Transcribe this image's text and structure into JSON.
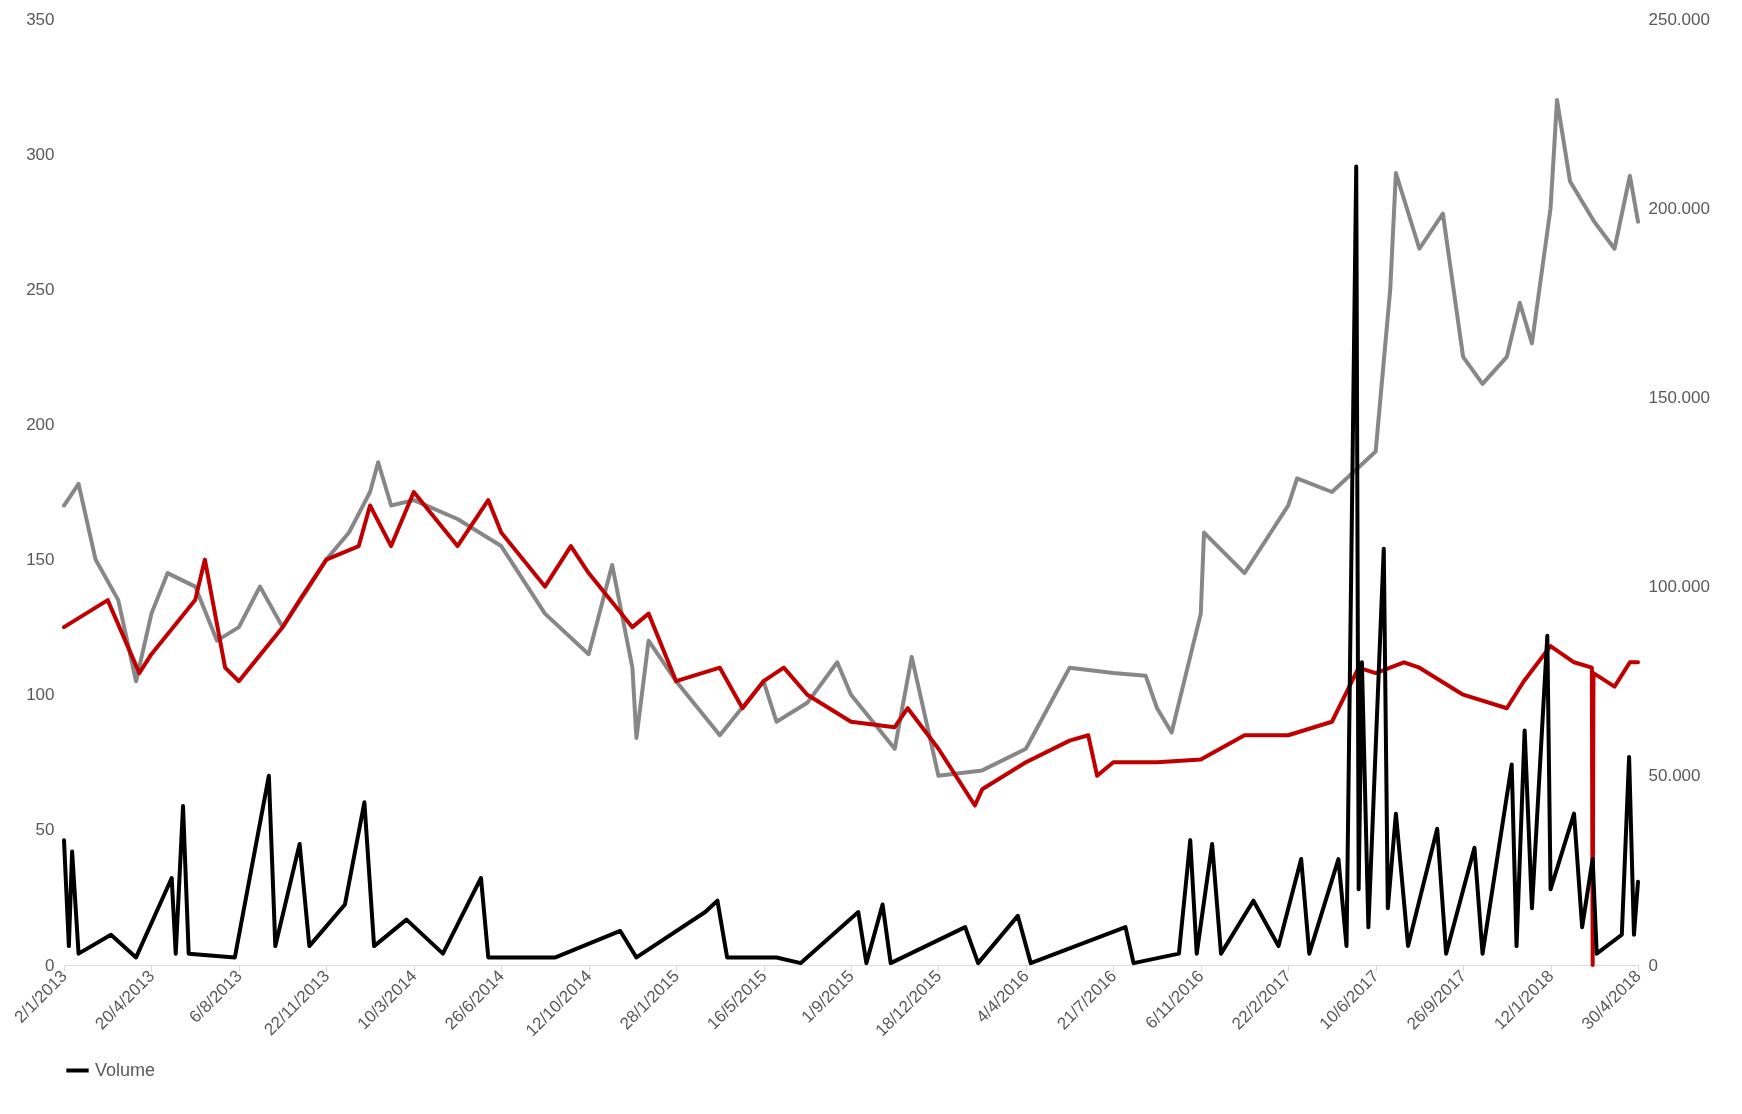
{
  "chart_data": {
    "type": "line",
    "xlim": [
      "2013-01-02",
      "2018-04-30"
    ],
    "xticks": [
      {
        "value": "2013-01-02",
        "label": "2/1/2013"
      },
      {
        "value": "2013-04-20",
        "label": "20/4/2013"
      },
      {
        "value": "2013-08-06",
        "label": "6/8/2013"
      },
      {
        "value": "2013-11-22",
        "label": "22/11/2013"
      },
      {
        "value": "2014-03-10",
        "label": "10/3/2014"
      },
      {
        "value": "2014-06-26",
        "label": "26/6/2014"
      },
      {
        "value": "2014-10-12",
        "label": "12/10/2014"
      },
      {
        "value": "2015-01-28",
        "label": "28/1/2015"
      },
      {
        "value": "2015-05-16",
        "label": "16/5/2015"
      },
      {
        "value": "2015-09-01",
        "label": "1/9/2015"
      },
      {
        "value": "2015-12-18",
        "label": "18/12/2015"
      },
      {
        "value": "2016-04-04",
        "label": "4/4/2016"
      },
      {
        "value": "2016-07-21",
        "label": "21/7/2016"
      },
      {
        "value": "2016-11-06",
        "label": "6/11/2016"
      },
      {
        "value": "2017-02-22",
        "label": "22/2/2017"
      },
      {
        "value": "2017-06-10",
        "label": "10/6/2017"
      },
      {
        "value": "2017-09-26",
        "label": "26/9/2017"
      },
      {
        "value": "2018-01-12",
        "label": "12/1/2018"
      },
      {
        "value": "2018-04-30",
        "label": "30/4/2018"
      }
    ],
    "ylim": [
      0,
      350
    ],
    "yticks": [
      0,
      50,
      100,
      150,
      200,
      250,
      300,
      350
    ],
    "y2lim": [
      0,
      250000
    ],
    "y2ticks": [
      0,
      {
        "value": 50000,
        "label": "50.000"
      },
      {
        "value": 100000,
        "label": "100.000"
      },
      {
        "value": 150000,
        "label": "150.000"
      },
      {
        "value": 200000,
        "label": "200.000"
      },
      {
        "value": 250000,
        "label": "250.000"
      }
    ],
    "grid": false,
    "legend": "bottom",
    "line_style": "solid",
    "marker": "none",
    "series": [
      {
        "color": "#878787",
        "x": [
          "2013-01-02",
          "2013-01-20",
          "2013-02-10",
          "2013-03-10",
          "2013-04-01",
          "2013-04-20",
          "2013-05-10",
          "2013-06-13",
          "2013-07-10",
          "2013-08-06",
          "2013-09-01",
          "2013-09-29",
          "2013-11-01",
          "2013-11-22",
          "2013-12-20",
          "2014-01-15",
          "2014-01-25",
          "2014-02-10",
          "2014-03-10",
          "2014-05-03",
          "2014-06-26",
          "2014-08-19",
          "2014-10-12",
          "2014-11-10",
          "2014-12-05",
          "2014-12-10",
          "2014-12-25",
          "2015-01-28",
          "2015-03-23",
          "2015-05-16",
          "2015-06-01",
          "2015-07-09",
          "2015-08-15",
          "2015-09-01",
          "2015-10-25",
          "2015-11-15",
          "2015-12-18",
          "2016-02-10",
          "2016-04-04",
          "2016-05-28",
          "2016-07-21",
          "2016-08-30",
          "2016-09-13",
          "2016-10-01",
          "2016-11-06",
          "2016-11-10",
          "2016-12-30",
          "2017-02-22",
          "2017-03-05",
          "2017-04-17",
          "2017-06-10",
          "2017-06-28",
          "2017-07-05",
          "2017-08-03",
          "2017-09-01",
          "2017-09-26",
          "2017-10-20",
          "2017-11-19",
          "2017-12-05",
          "2017-12-20",
          "2018-01-12",
          "2018-01-20",
          "2018-02-05",
          "2018-03-07",
          "2018-04-01",
          "2018-04-20",
          "2018-04-30"
        ],
        "values": [
          170,
          178,
          150,
          135,
          105,
          130,
          145,
          140,
          120,
          125,
          140,
          125,
          140,
          150,
          160,
          175,
          186,
          170,
          172,
          165,
          155,
          130,
          115,
          148,
          110,
          84,
          120,
          105,
          85,
          105,
          90,
          97,
          112,
          100,
          80,
          114,
          70,
          72,
          80,
          110,
          108,
          107,
          95,
          86,
          130,
          160,
          145,
          170,
          180,
          175,
          190,
          250,
          293,
          265,
          278,
          225,
          215,
          225,
          245,
          230,
          280,
          320,
          290,
          275,
          265,
          292,
          275
        ]
      },
      {
        "color": "#c00000",
        "x": [
          "2013-01-02",
          "2013-02-25",
          "2013-04-05",
          "2013-04-20",
          "2013-06-13",
          "2013-06-25",
          "2013-07-20",
          "2013-08-06",
          "2013-09-29",
          "2013-10-20",
          "2013-11-22",
          "2014-01-01",
          "2014-01-15",
          "2014-02-10",
          "2014-03-10",
          "2014-05-03",
          "2014-06-10",
          "2014-06-26",
          "2014-08-19",
          "2014-09-20",
          "2014-10-12",
          "2014-12-05",
          "2014-12-25",
          "2015-01-28",
          "2015-03-23",
          "2015-04-20",
          "2015-05-16",
          "2015-06-10",
          "2015-07-09",
          "2015-09-01",
          "2015-10-25",
          "2015-11-10",
          "2015-12-18",
          "2016-02-01",
          "2016-02-10",
          "2016-04-04",
          "2016-05-28",
          "2016-06-20",
          "2016-07-01",
          "2016-07-21",
          "2016-09-13",
          "2016-11-06",
          "2016-12-30",
          "2017-02-22",
          "2017-04-17",
          "2017-05-20",
          "2017-06-10",
          "2017-07-15",
          "2017-08-03",
          "2017-09-26",
          "2017-11-19",
          "2017-12-10",
          "2018-01-12",
          "2018-02-10",
          "2018-03-04",
          "2018-03-05",
          "2018-03-06",
          "2018-04-01",
          "2018-04-20",
          "2018-04-30"
        ],
        "values": [
          125,
          135,
          108,
          115,
          135,
          150,
          110,
          105,
          125,
          135,
          150,
          155,
          170,
          155,
          175,
          155,
          172,
          160,
          140,
          155,
          145,
          125,
          130,
          105,
          110,
          95,
          105,
          110,
          100,
          90,
          88,
          95,
          80,
          59,
          65,
          75,
          83,
          85,
          70,
          75,
          75,
          76,
          85,
          85,
          90,
          110,
          108,
          112,
          110,
          100,
          95,
          105,
          118,
          112,
          110,
          0,
          108,
          103,
          112,
          112
        ]
      },
      {
        "name": "Volume",
        "color": "#000000",
        "axis": "y2",
        "x": [
          "2013-01-02",
          "2013-01-08",
          "2013-01-12",
          "2013-01-20",
          "2013-03-01",
          "2013-04-01",
          "2013-05-15",
          "2013-05-20",
          "2013-05-29",
          "2013-06-05",
          "2013-08-01",
          "2013-09-12",
          "2013-09-20",
          "2013-10-20",
          "2013-11-01",
          "2013-12-15",
          "2014-01-08",
          "2014-01-20",
          "2014-03-01",
          "2014-04-15",
          "2014-06-01",
          "2014-06-10",
          "2014-09-01",
          "2014-11-20",
          "2014-12-10",
          "2015-03-05",
          "2015-03-20",
          "2015-04-01",
          "2015-06-01",
          "2015-07-01",
          "2015-09-10",
          "2015-09-20",
          "2015-10-10",
          "2015-10-20",
          "2016-01-20",
          "2016-02-05",
          "2016-03-25",
          "2016-04-10",
          "2016-08-05",
          "2016-08-15",
          "2016-10-10",
          "2016-10-24",
          "2016-11-01",
          "2016-11-20",
          "2016-12-01",
          "2017-01-10",
          "2017-02-10",
          "2017-03-10",
          "2017-03-20",
          "2017-04-25",
          "2017-05-05",
          "2017-05-17",
          "2017-05-20",
          "2017-05-24",
          "2017-06-01",
          "2017-06-20",
          "2017-06-25",
          "2017-07-05",
          "2017-07-20",
          "2017-08-25",
          "2017-09-05",
          "2017-10-10",
          "2017-10-20",
          "2017-11-25",
          "2017-12-01",
          "2017-12-11",
          "2017-12-20",
          "2018-01-08",
          "2018-01-12",
          "2018-02-10",
          "2018-02-20",
          "2018-03-05",
          "2018-03-10",
          "2018-04-10",
          "2018-04-19",
          "2018-04-25",
          "2018-04-30"
        ],
        "values": [
          33000,
          5000,
          30000,
          3000,
          8000,
          2000,
          23000,
          3000,
          42000,
          3000,
          2000,
          50000,
          5000,
          32000,
          5000,
          16000,
          43000,
          5000,
          12000,
          3000,
          23000,
          2000,
          2000,
          9000,
          2000,
          14000,
          17000,
          2000,
          2000,
          500,
          14000,
          500,
          16000,
          500,
          10000,
          500,
          13000,
          500,
          10000,
          500,
          3000,
          33000,
          3000,
          32000,
          3000,
          17000,
          5000,
          28000,
          3000,
          28000,
          5000,
          211000,
          20000,
          80000,
          10000,
          110000,
          15000,
          40000,
          5000,
          36000,
          3000,
          31000,
          3000,
          53000,
          5000,
          62000,
          15000,
          87000,
          20000,
          40000,
          10000,
          28000,
          3000,
          8000,
          55000,
          8000,
          22000
        ]
      }
    ]
  }
}
